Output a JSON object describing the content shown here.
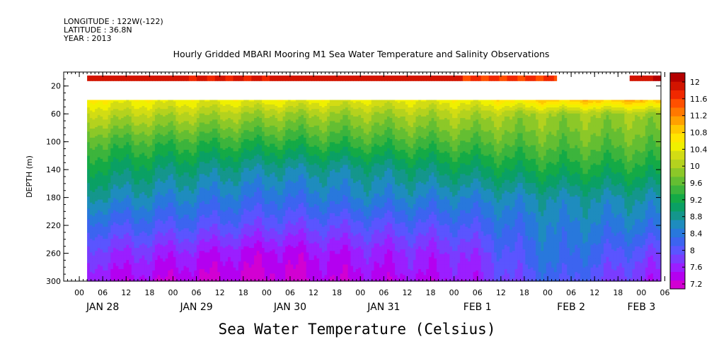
{
  "header": {
    "longitude": "LONGITUDE : 122W(-122)",
    "latitude": "LATITUDE : 36.8N",
    "year": "YEAR : 2013"
  },
  "chart_data": {
    "type": "heatmap",
    "title": "Hourly Gridded MBARI Mooring M1 Sea Water Temperature and Salinity Observations",
    "xlabel": "Sea Water Temperature (Celsius)",
    "ylabel": "DEPTH (m)",
    "y_axis": {
      "range": [
        300,
        0
      ],
      "ticks": [
        20,
        60,
        100,
        140,
        180,
        220,
        260,
        300
      ],
      "inverted": true
    },
    "x_axis": {
      "hour_ticks": [
        "00",
        "06",
        "12",
        "18",
        "00",
        "06",
        "12",
        "18",
        "00",
        "06",
        "12",
        "18",
        "00",
        "06",
        "12",
        "18",
        "00",
        "06",
        "12",
        "18",
        "00",
        "06",
        "12",
        "18",
        "00",
        "06"
      ],
      "day_labels": [
        {
          "label": "JAN 28",
          "hour": 30
        },
        {
          "label": "JAN 29",
          "hour": 54
        },
        {
          "label": "JAN 30",
          "hour": 78
        },
        {
          "label": "JAN 31",
          "hour": 102
        },
        {
          "label": "FEB  1",
          "hour": 126
        },
        {
          "label": "FEB  2",
          "hour": 150
        },
        {
          "label": "FEB  3",
          "hour": 168
        }
      ],
      "range_hours": [
        20,
        173
      ],
      "data_start_hour": 26
    },
    "colorbar": {
      "labels": [
        "12",
        "11.6",
        "11.2",
        "10.8",
        "10.4",
        "10",
        "9.6",
        "9.2",
        "8.8",
        "8.4",
        "8",
        "7.6",
        "7.2"
      ],
      "levels": [
        7.2,
        7.4,
        7.6,
        7.8,
        8.0,
        8.2,
        8.4,
        8.6,
        8.8,
        9.0,
        9.2,
        9.4,
        9.6,
        9.8,
        10.0,
        10.2,
        10.4,
        10.6,
        10.8,
        11.0,
        11.2,
        11.4,
        11.6,
        11.8,
        12.0,
        12.2
      ],
      "colors": [
        "#d200d2",
        "#b400f0",
        "#9b1eff",
        "#7a3cff",
        "#5a55ff",
        "#3c64f0",
        "#2878dc",
        "#1e8cbe",
        "#14968c",
        "#0aa064",
        "#14aa46",
        "#3cb43c",
        "#64be32",
        "#8cc828",
        "#b4d21e",
        "#d2dc14",
        "#f0f000",
        "#ffe600",
        "#ffc800",
        "#ffa000",
        "#ff7800",
        "#ff5000",
        "#f02800",
        "#d21400",
        "#b40000"
      ]
    },
    "layers": [
      {
        "depth": 10,
        "values_by_day": [
          11.9,
          11.8,
          11.9,
          11.9,
          11.6,
          null,
          12.0
        ]
      },
      {
        "depth": 40,
        "values_by_day": [
          10.6,
          10.5,
          10.5,
          10.4,
          10.5,
          10.9,
          11.0
        ]
      },
      {
        "depth": 60,
        "values_by_day": [
          10.2,
          10.1,
          10.0,
          10.0,
          10.1,
          10.0,
          10.0
        ]
      },
      {
        "depth": 100,
        "values_by_day": [
          9.6,
          9.5,
          9.4,
          9.5,
          9.6,
          9.7,
          9.7
        ]
      },
      {
        "depth": 140,
        "values_by_day": [
          9.2,
          9.0,
          8.8,
          8.9,
          9.1,
          9.3,
          9.3
        ]
      },
      {
        "depth": 180,
        "values_by_day": [
          8.8,
          8.6,
          8.4,
          8.6,
          8.6,
          8.8,
          8.8
        ]
      },
      {
        "depth": 220,
        "values_by_day": [
          8.3,
          8.2,
          8.0,
          8.1,
          8.2,
          8.6,
          8.5
        ]
      },
      {
        "depth": 260,
        "values_by_day": [
          7.9,
          7.7,
          7.5,
          7.7,
          7.8,
          8.5,
          8.0
        ]
      },
      {
        "depth": 300,
        "values_by_day": [
          7.6,
          7.4,
          7.3,
          7.5,
          7.6,
          8.3,
          7.7
        ]
      }
    ],
    "grid": false
  }
}
